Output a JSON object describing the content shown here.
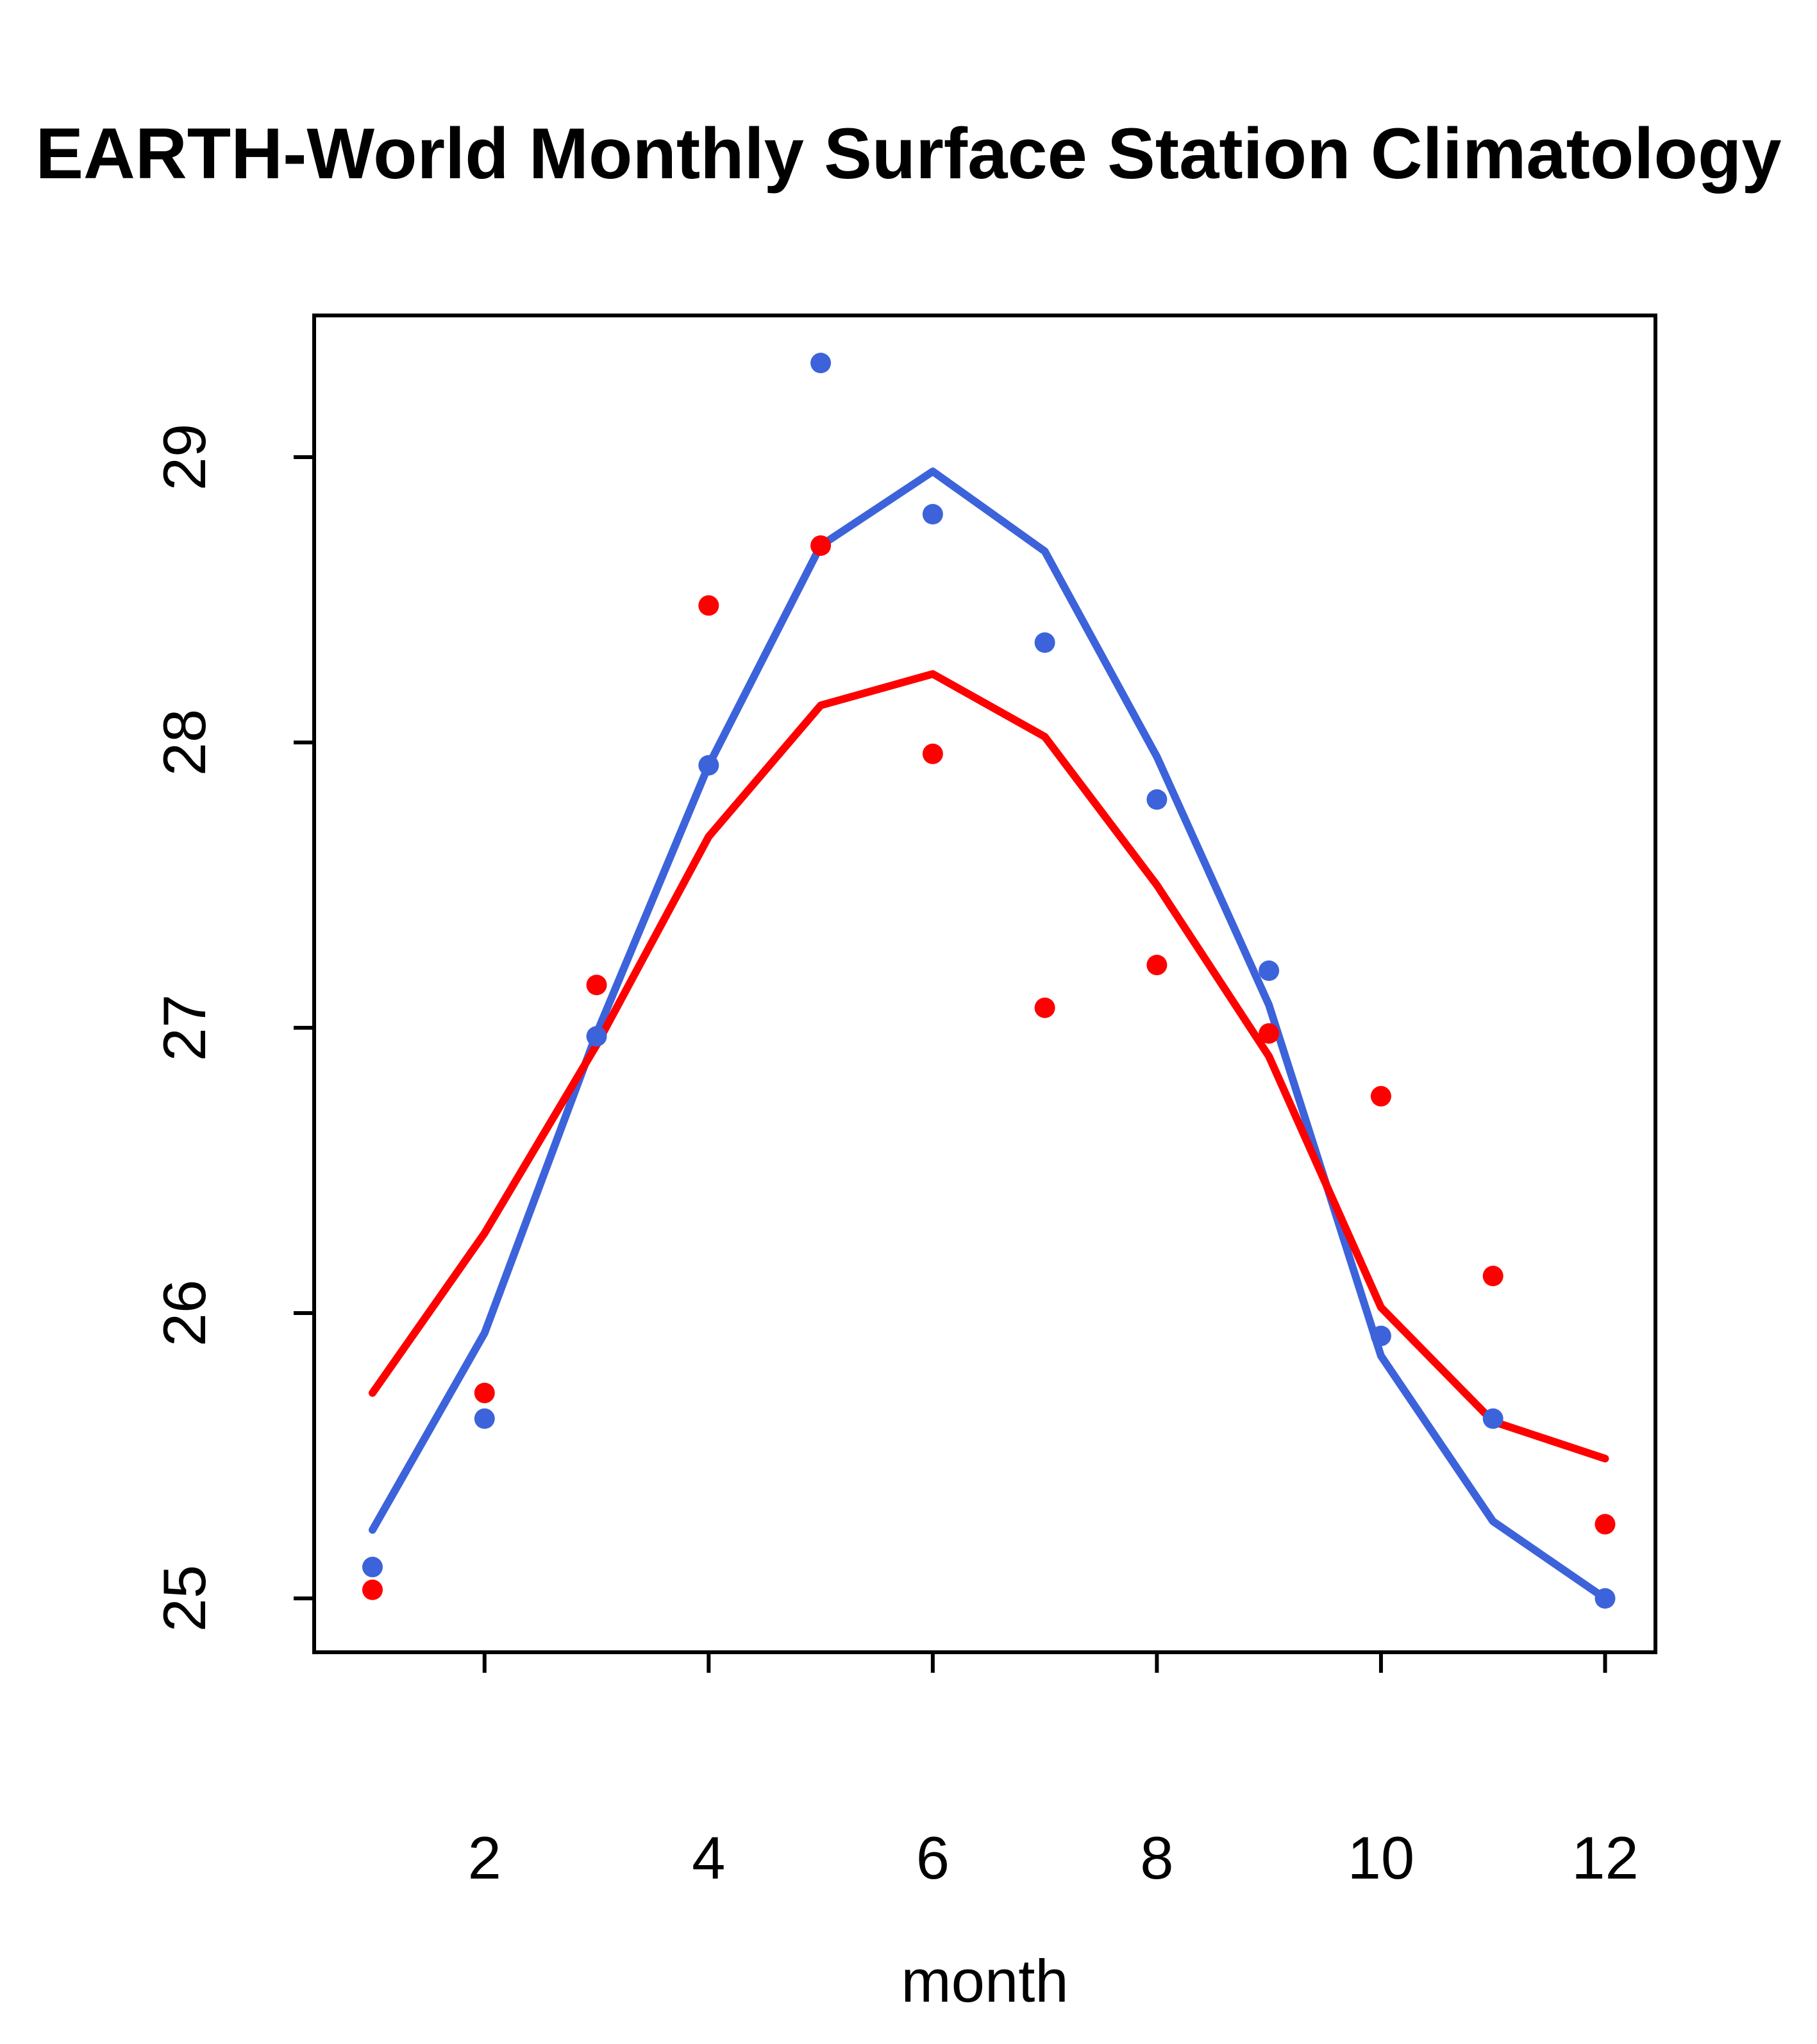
{
  "title": "EARTH-World Monthly Surface Station Climatology",
  "chart_data": {
    "type": "scatter",
    "subtype": "scatter-with-fitted-lines",
    "title": "EARTH-World Monthly Surface Station Climatology",
    "xlabel": "month",
    "ylabel": "",
    "x": [
      1,
      2,
      3,
      4,
      5,
      6,
      7,
      8,
      9,
      10,
      11,
      12
    ],
    "x_ticks": [
      2,
      4,
      6,
      8,
      10,
      12
    ],
    "y_ticks": [
      25,
      26,
      27,
      28,
      29
    ],
    "xlim": [
      0.48,
      12.45
    ],
    "ylim": [
      24.81,
      29.5
    ],
    "grid": false,
    "legend": "none",
    "colors": {
      "blue": "#3D63DB",
      "red": "#FF0000",
      "axis": "#000000"
    },
    "series": [
      {
        "name": "blue-station-points",
        "kind": "scatter",
        "color": "#3D63DB",
        "values": [
          25.11,
          25.63,
          26.97,
          27.92,
          29.33,
          28.8,
          28.35,
          27.8,
          27.2,
          25.92,
          25.63,
          25.0
        ]
      },
      {
        "name": "red-station-points",
        "kind": "scatter",
        "color": "#FF0000",
        "values": [
          25.03,
          25.72,
          27.15,
          28.48,
          28.69,
          27.96,
          27.07,
          27.22,
          26.98,
          26.76,
          26.13,
          25.26
        ]
      },
      {
        "name": "blue-fitted-line",
        "kind": "line",
        "color": "#3D63DB",
        "values": [
          25.24,
          25.93,
          26.98,
          27.92,
          28.69,
          28.95,
          28.67,
          27.95,
          27.08,
          25.85,
          25.27,
          25.0
        ]
      },
      {
        "name": "red-fitted-line",
        "kind": "line",
        "color": "#FF0000",
        "values": [
          25.72,
          26.28,
          26.94,
          27.67,
          28.13,
          28.24,
          28.02,
          27.5,
          26.9,
          26.02,
          25.62,
          25.49
        ]
      }
    ]
  }
}
